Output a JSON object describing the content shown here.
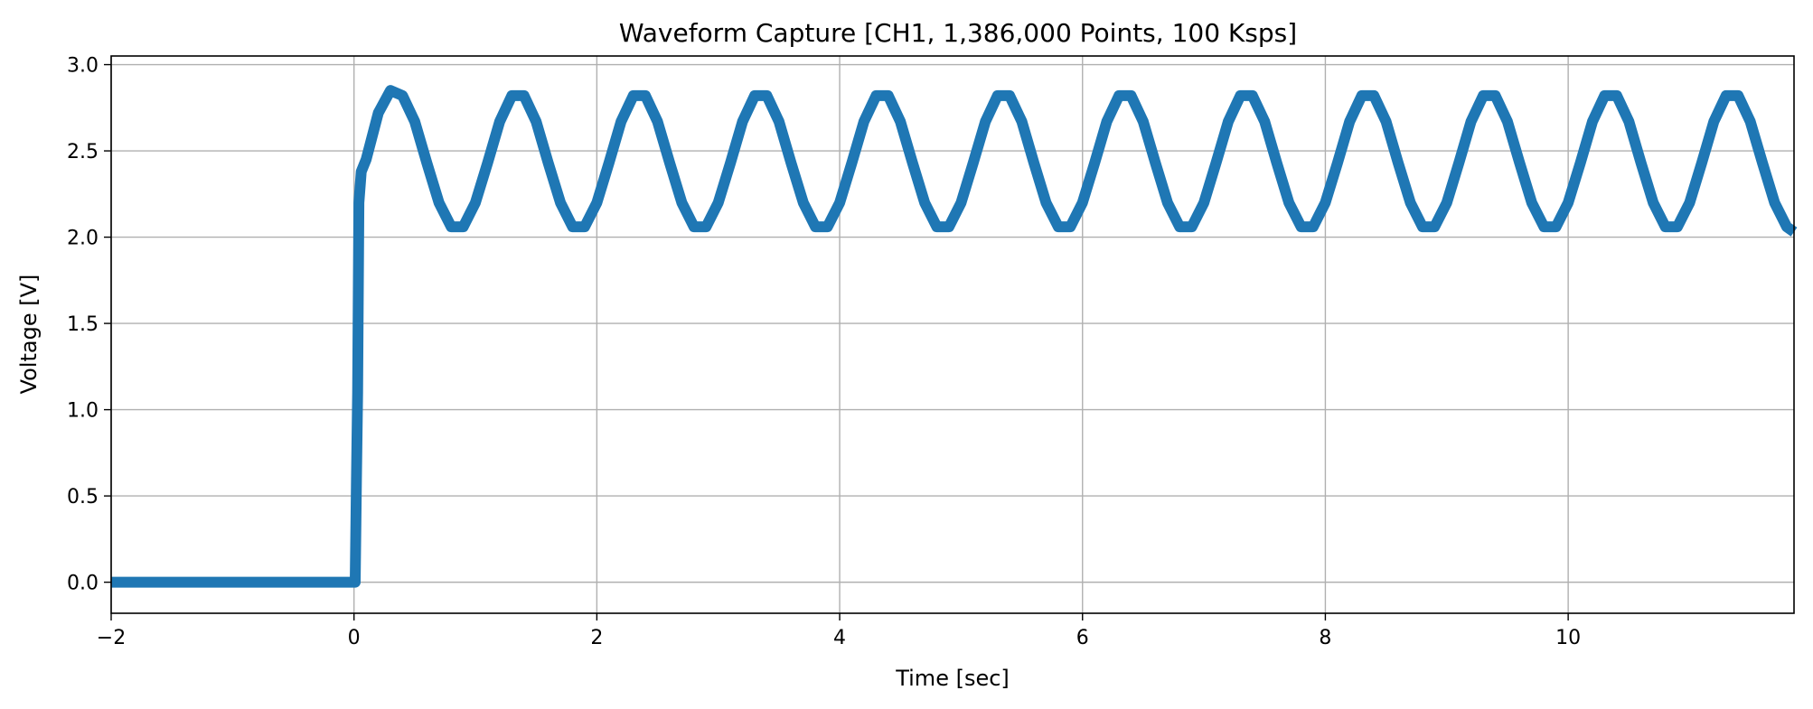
{
  "chart_data": {
    "type": "line",
    "title": "Waveform Capture [CH1, 1,386,000 Points, 100 Ksps]",
    "xlabel": "Time [sec]",
    "ylabel": "Voltage [V]",
    "xlim": [
      -2,
      11.86
    ],
    "ylim": [
      -0.18,
      3.05
    ],
    "grid": true,
    "x_ticks": [
      -2,
      0,
      2,
      4,
      6,
      8,
      10
    ],
    "x_tick_labels": [
      "−2",
      "0",
      "2",
      "4",
      "6",
      "8",
      "10"
    ],
    "y_ticks": [
      0.0,
      0.5,
      1.0,
      1.5,
      2.0,
      2.5,
      3.0
    ],
    "y_tick_labels": [
      "0.0",
      "0.5",
      "1.0",
      "1.5",
      "2.0",
      "2.5",
      "3.0"
    ],
    "colors": {
      "series": "#1f77b4",
      "grid": "#b0b0b0",
      "axes": "#000000"
    },
    "series": [
      {
        "points": [
          [
            -2.0,
            0.0
          ],
          [
            0.0,
            0.0
          ],
          [
            0.01,
            0.0
          ],
          [
            0.02,
            0.6
          ],
          [
            0.03,
            1.1
          ],
          [
            0.04,
            2.2
          ],
          [
            0.06,
            2.38
          ],
          [
            0.1,
            2.45
          ],
          [
            0.2,
            2.72
          ],
          [
            0.3,
            2.85
          ],
          [
            0.4,
            2.82
          ],
          [
            0.5,
            2.67
          ],
          [
            0.6,
            2.43
          ],
          [
            0.7,
            2.2
          ],
          [
            0.8,
            2.06
          ],
          [
            0.9,
            2.06
          ],
          [
            1.0,
            2.2
          ],
          [
            1.1,
            2.43
          ],
          [
            1.2,
            2.67
          ],
          [
            1.3,
            2.82
          ],
          [
            1.4,
            2.82
          ],
          [
            1.5,
            2.67
          ],
          [
            1.6,
            2.43
          ],
          [
            1.7,
            2.2
          ],
          [
            1.8,
            2.06
          ],
          [
            1.9,
            2.06
          ],
          [
            2.0,
            2.2
          ],
          [
            2.1,
            2.43
          ],
          [
            2.2,
            2.67
          ],
          [
            2.3,
            2.82
          ],
          [
            2.4,
            2.82
          ],
          [
            2.5,
            2.67
          ],
          [
            2.6,
            2.43
          ],
          [
            2.7,
            2.2
          ],
          [
            2.8,
            2.06
          ],
          [
            2.9,
            2.06
          ],
          [
            3.0,
            2.2
          ],
          [
            3.1,
            2.43
          ],
          [
            3.2,
            2.67
          ],
          [
            3.3,
            2.82
          ],
          [
            3.4,
            2.82
          ],
          [
            3.5,
            2.67
          ],
          [
            3.6,
            2.43
          ],
          [
            3.7,
            2.2
          ],
          [
            3.8,
            2.06
          ],
          [
            3.9,
            2.06
          ],
          [
            4.0,
            2.2
          ],
          [
            4.1,
            2.43
          ],
          [
            4.2,
            2.67
          ],
          [
            4.3,
            2.82
          ],
          [
            4.4,
            2.82
          ],
          [
            4.5,
            2.67
          ],
          [
            4.6,
            2.43
          ],
          [
            4.7,
            2.2
          ],
          [
            4.8,
            2.06
          ],
          [
            4.9,
            2.06
          ],
          [
            5.0,
            2.2
          ],
          [
            5.1,
            2.43
          ],
          [
            5.2,
            2.67
          ],
          [
            5.3,
            2.82
          ],
          [
            5.4,
            2.82
          ],
          [
            5.5,
            2.67
          ],
          [
            5.6,
            2.43
          ],
          [
            5.7,
            2.2
          ],
          [
            5.8,
            2.06
          ],
          [
            5.9,
            2.06
          ],
          [
            6.0,
            2.2
          ],
          [
            6.1,
            2.43
          ],
          [
            6.2,
            2.67
          ],
          [
            6.3,
            2.82
          ],
          [
            6.4,
            2.82
          ],
          [
            6.5,
            2.67
          ],
          [
            6.6,
            2.43
          ],
          [
            6.7,
            2.2
          ],
          [
            6.8,
            2.06
          ],
          [
            6.9,
            2.06
          ],
          [
            7.0,
            2.2
          ],
          [
            7.1,
            2.43
          ],
          [
            7.2,
            2.67
          ],
          [
            7.3,
            2.82
          ],
          [
            7.4,
            2.82
          ],
          [
            7.5,
            2.67
          ],
          [
            7.6,
            2.43
          ],
          [
            7.7,
            2.2
          ],
          [
            7.8,
            2.06
          ],
          [
            7.9,
            2.06
          ],
          [
            8.0,
            2.2
          ],
          [
            8.1,
            2.43
          ],
          [
            8.2,
            2.67
          ],
          [
            8.3,
            2.82
          ],
          [
            8.4,
            2.82
          ],
          [
            8.5,
            2.67
          ],
          [
            8.6,
            2.43
          ],
          [
            8.7,
            2.2
          ],
          [
            8.8,
            2.06
          ],
          [
            8.9,
            2.06
          ],
          [
            9.0,
            2.2
          ],
          [
            9.1,
            2.43
          ],
          [
            9.2,
            2.67
          ],
          [
            9.3,
            2.82
          ],
          [
            9.4,
            2.82
          ],
          [
            9.5,
            2.67
          ],
          [
            9.6,
            2.43
          ],
          [
            9.7,
            2.2
          ],
          [
            9.8,
            2.06
          ],
          [
            9.9,
            2.06
          ],
          [
            10.0,
            2.2
          ],
          [
            10.1,
            2.43
          ],
          [
            10.2,
            2.67
          ],
          [
            10.3,
            2.82
          ],
          [
            10.4,
            2.82
          ],
          [
            10.5,
            2.67
          ],
          [
            10.6,
            2.43
          ],
          [
            10.7,
            2.2
          ],
          [
            10.8,
            2.06
          ],
          [
            10.9,
            2.06
          ],
          [
            11.0,
            2.2
          ],
          [
            11.1,
            2.43
          ],
          [
            11.2,
            2.67
          ],
          [
            11.3,
            2.82
          ],
          [
            11.4,
            2.82
          ],
          [
            11.5,
            2.67
          ],
          [
            11.6,
            2.43
          ],
          [
            11.7,
            2.2
          ],
          [
            11.8,
            2.06
          ],
          [
            11.86,
            2.03
          ]
        ]
      }
    ]
  }
}
